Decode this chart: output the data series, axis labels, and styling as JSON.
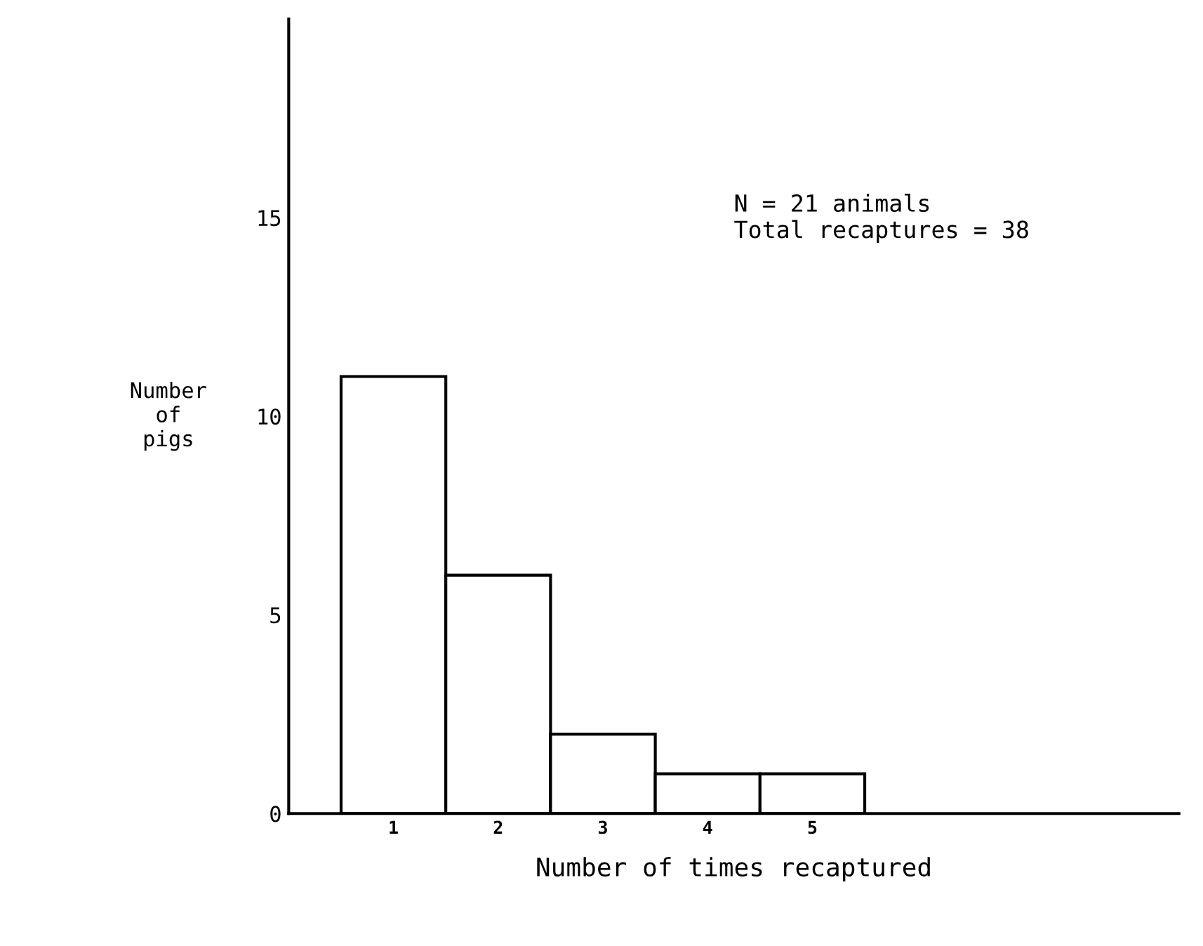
{
  "chart_data": {
    "type": "bar",
    "categories": [
      "1",
      "2",
      "3",
      "4",
      "5"
    ],
    "values": [
      11,
      6,
      2,
      1,
      1
    ],
    "color": "#ffffff",
    "ylim": [
      0,
      20
    ],
    "yticks": [
      0,
      5,
      10,
      15
    ],
    "xlabel": "Number of times recaptured",
    "ylabel": "Number of pigs",
    "annotations": [
      "N = 21 animals\nTotal recaptures = 38"
    ],
    "grid": false,
    "legend": false
  }
}
